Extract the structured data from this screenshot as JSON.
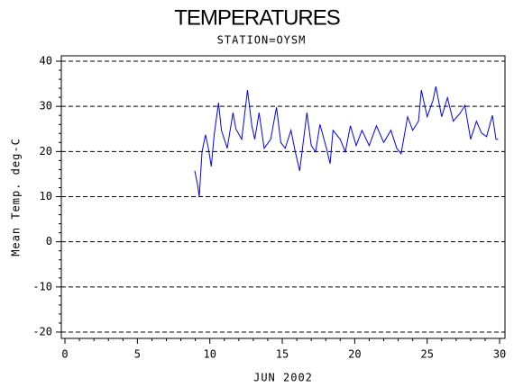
{
  "chart_data": {
    "type": "line",
    "title": "TEMPERATURES",
    "subtitle": "STATION=OYSM",
    "xlabel": "JUN 2002",
    "ylabel": "Mean Temp. deg-C",
    "x": [
      8.96,
      9.15,
      9.27,
      9.46,
      9.7,
      9.9,
      10.1,
      10.3,
      10.6,
      10.8,
      11.2,
      11.6,
      11.8,
      12.2,
      12.6,
      12.9,
      13.1,
      13.4,
      13.75,
      14.2,
      14.6,
      14.9,
      15.2,
      15.6,
      15.9,
      16.2,
      16.7,
      17.0,
      17.3,
      17.6,
      18.05,
      18.3,
      18.5,
      19.0,
      19.35,
      19.7,
      20.1,
      20.5,
      21.0,
      21.5,
      22.0,
      22.5,
      22.9,
      23.2,
      23.65,
      24.0,
      24.4,
      24.6,
      25.0,
      25.4,
      25.6,
      26.0,
      26.4,
      26.8,
      27.3,
      27.6,
      28.0,
      28.4,
      28.75,
      29.1,
      29.5,
      29.75,
      29.9
    ],
    "series": [
      {
        "name": "Mean Temp",
        "color": "#0000ff",
        "values": [
          15.7,
          12.7,
          10.0,
          19.9,
          23.7,
          20.7,
          16.7,
          23.7,
          30.8,
          24.7,
          20.7,
          28.6,
          25.0,
          22.7,
          33.6,
          25.7,
          22.7,
          28.6,
          20.7,
          22.7,
          29.8,
          22.0,
          20.7,
          24.7,
          19.9,
          15.7,
          28.6,
          21.3,
          19.9,
          26.0,
          20.7,
          17.3,
          24.7,
          22.7,
          19.9,
          25.7,
          21.3,
          24.7,
          21.3,
          25.7,
          22.0,
          24.7,
          20.7,
          19.5,
          27.7,
          24.7,
          26.7,
          33.6,
          27.7,
          31.3,
          34.4,
          27.7,
          31.9,
          26.7,
          28.6,
          30.2,
          22.7,
          26.7,
          24.1,
          23.3,
          28.0,
          22.7,
          22.7
        ]
      }
    ],
    "xlim": [
      -0.25,
      30.37
    ],
    "ylim": [
      -21.4,
      41.2
    ],
    "xticks": [
      0,
      5,
      10,
      15,
      20,
      25,
      30
    ],
    "yticks": [
      -20,
      -10,
      0,
      10,
      20,
      30,
      40
    ],
    "grid": true
  }
}
